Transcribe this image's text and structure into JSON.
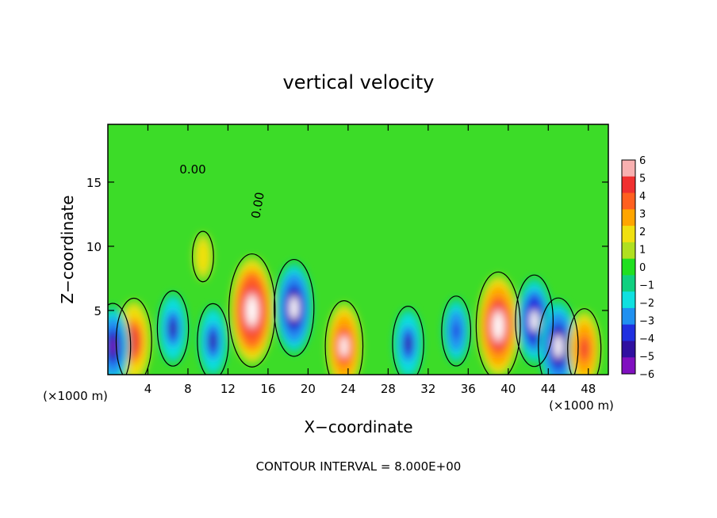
{
  "chart_data": {
    "type": "heatmap",
    "title": "vertical velocity",
    "xlabel": "X−coordinate",
    "ylabel": "Z−coordinate",
    "x_unit_left": "(×1000 m)",
    "x_unit_right": "(×1000 m)",
    "footer": "CONTOUR INTERVAL = 8.000E+00",
    "contour_label": "0.00",
    "xlim": [
      0,
      50
    ],
    "ylim": [
      0,
      19.5
    ],
    "x_ticks": [
      4,
      8,
      12,
      16,
      20,
      24,
      28,
      32,
      36,
      40,
      44,
      48
    ],
    "y_ticks": [
      5,
      10,
      15
    ],
    "colorbar": {
      "ticks": [
        "6",
        "5",
        "4",
        "3",
        "2",
        "1",
        "0",
        "−1",
        "−2",
        "−3",
        "−4",
        "−5",
        "−6"
      ],
      "colors": [
        "#f8b0b0",
        "#f03030",
        "#ff6020",
        "#ffa500",
        "#f0e010",
        "#b0e020",
        "#20e020",
        "#10d080",
        "#10e0e0",
        "#2090f0",
        "#2030e0",
        "#3010a0",
        "#8010c0"
      ]
    },
    "features": [
      {
        "x": 2.6,
        "z": 2.6,
        "w": 5.5
      },
      {
        "x": 9.5,
        "z": 9.2,
        "w": 2.2
      },
      {
        "x": 14.4,
        "z": 5.0,
        "w": 8.0
      },
      {
        "x": 18.6,
        "z": 5.2,
        "w": -6.5
      },
      {
        "x": 23.6,
        "z": 2.2,
        "w": 6.0
      },
      {
        "x": 39.0,
        "z": 3.8,
        "w": 7.5
      },
      {
        "x": 42.6,
        "z": 4.2,
        "w": -6.0
      },
      {
        "x": 45.0,
        "z": 2.2,
        "w": -6.5
      },
      {
        "x": 47.6,
        "z": 2.0,
        "w": 5.0
      },
      {
        "x": 30.0,
        "z": 2.4,
        "w": -4.5
      },
      {
        "x": 6.5,
        "z": 3.6,
        "w": -4.5
      },
      {
        "x": 10.5,
        "z": 2.6,
        "w": -4.5
      },
      {
        "x": 34.8,
        "z": 3.4,
        "w": -4.0
      },
      {
        "x": 0.5,
        "z": 2.2,
        "w": -5.5
      }
    ]
  }
}
